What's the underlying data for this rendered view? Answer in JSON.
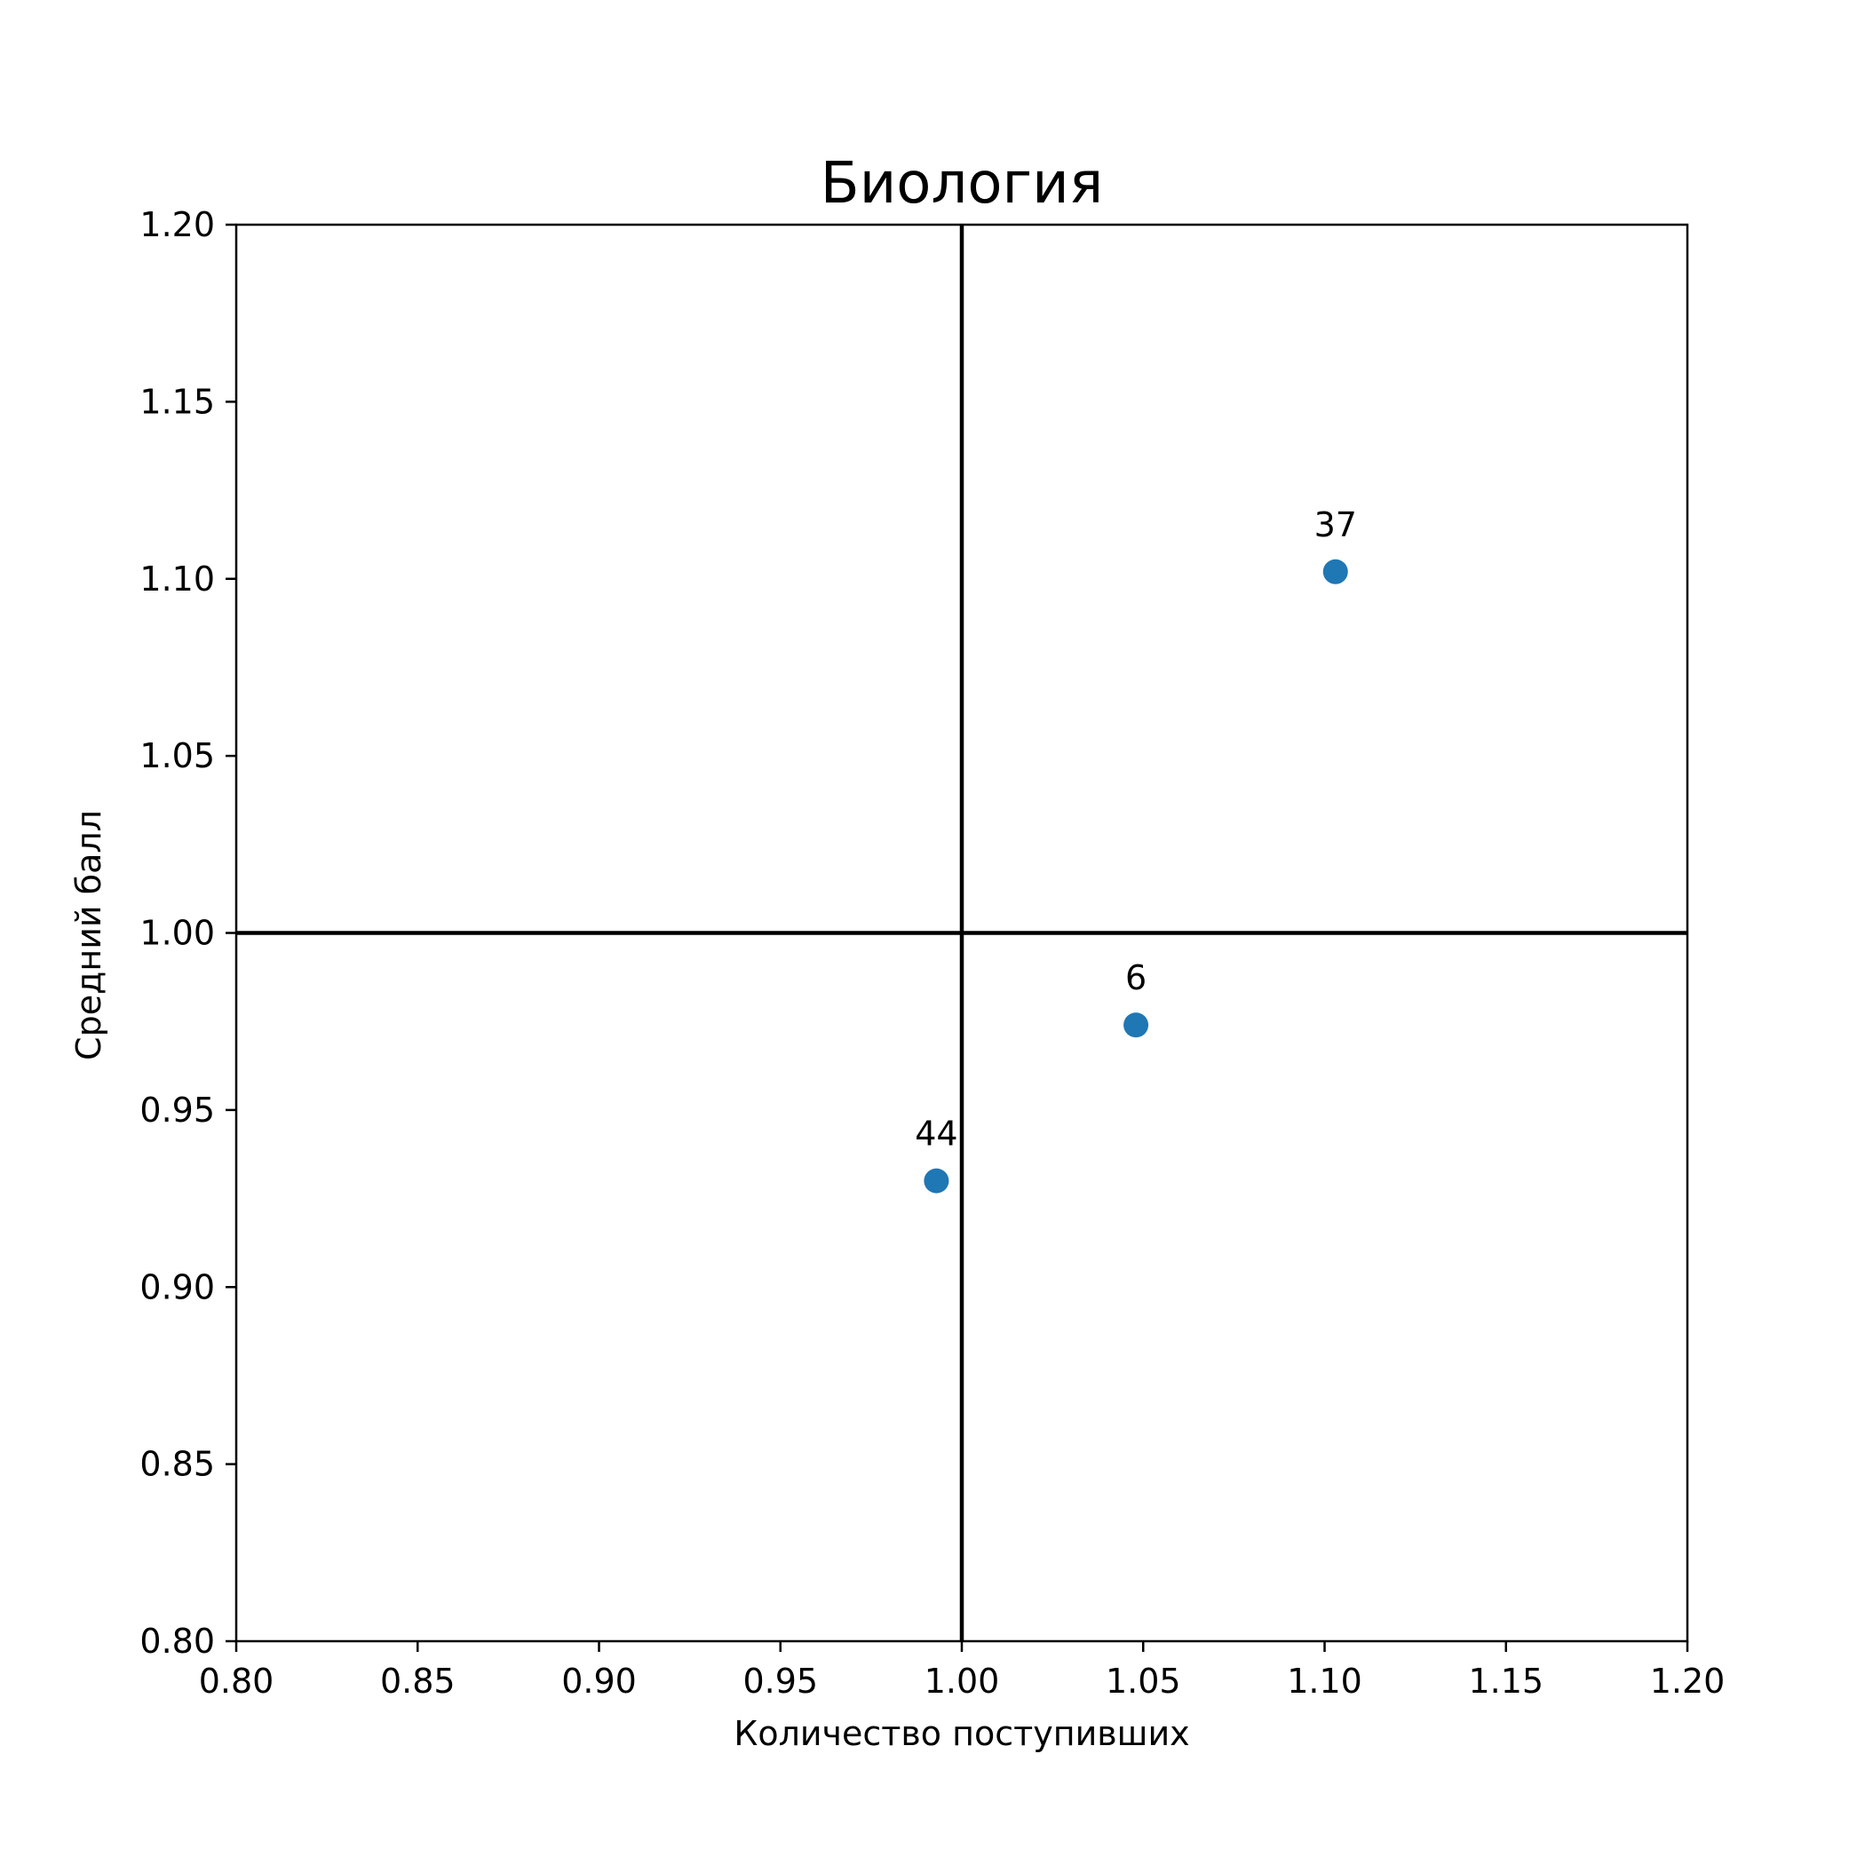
{
  "chart_data": {
    "type": "scatter",
    "title": "Биология",
    "xlabel": "Количество поступивших",
    "ylabel": "Средний балл",
    "xlim": [
      0.8,
      1.2
    ],
    "ylim": [
      0.8,
      1.2
    ],
    "x_ticks": [
      "0.80",
      "0.85",
      "0.90",
      "0.95",
      "1.00",
      "1.05",
      "1.10",
      "1.15",
      "1.20"
    ],
    "y_ticks": [
      "0.80",
      "0.85",
      "0.90",
      "0.95",
      "1.00",
      "1.05",
      "1.10",
      "1.15",
      "1.20"
    ],
    "reference_lines": {
      "x": 1.0,
      "y": 1.0
    },
    "grid": false,
    "marker_color": "#1f77b4",
    "points": [
      {
        "label": "37",
        "x": 1.103,
        "y": 1.102
      },
      {
        "label": "6",
        "x": 1.048,
        "y": 0.974
      },
      {
        "label": "44",
        "x": 0.993,
        "y": 0.93
      }
    ]
  }
}
